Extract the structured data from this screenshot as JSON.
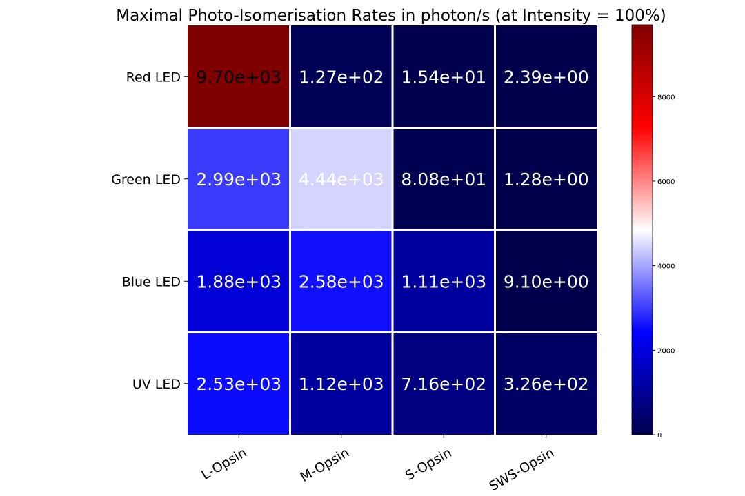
{
  "chart_data": {
    "type": "heatmap",
    "title": "Maximal Photo-Isomerisation Rates in photon/s (at Intensity = 100%)",
    "rows": [
      "Red LED",
      "Green LED",
      "Blue LED",
      "UV LED"
    ],
    "columns": [
      "L-Opsin",
      "M-Opsin",
      "S-Opsin",
      "SWS-Opsin"
    ],
    "values": [
      [
        9700,
        127,
        15.4,
        2.39
      ],
      [
        2990,
        4440,
        80.8,
        1.28
      ],
      [
        1880,
        2580,
        1110,
        9.1
      ],
      [
        2530,
        1120,
        716,
        326
      ]
    ],
    "cell_labels": [
      [
        "9.70e+03",
        "1.27e+02",
        "1.54e+01",
        "2.39e+00"
      ],
      [
        "2.99e+03",
        "4.44e+03",
        "8.08e+01",
        "1.28e+00"
      ],
      [
        "1.88e+03",
        "2.58e+03",
        "1.11e+03",
        "9.10e+00"
      ],
      [
        "2.53e+03",
        "1.12e+03",
        "7.16e+02",
        "3.26e+02"
      ]
    ],
    "colormap": "seismic",
    "colorbar": {
      "range": [
        0,
        9700
      ],
      "ticks": [
        0,
        2000,
        4000,
        6000,
        8000
      ],
      "tick_labels": [
        "0",
        "2000",
        "4000",
        "6000",
        "8000"
      ]
    },
    "grid_color": "#ffffff"
  }
}
